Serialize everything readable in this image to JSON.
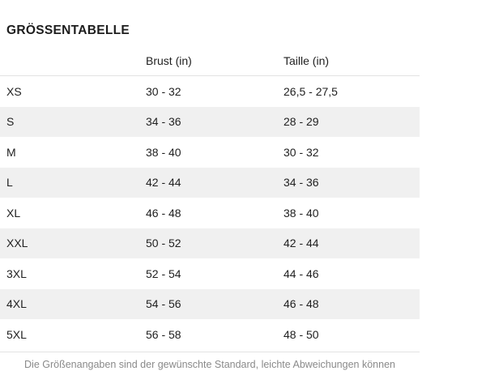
{
  "page": {
    "title": "GRÖSSENTABELLE",
    "note": "Die Größenangaben sind der gewünschte Standard, leichte Abweichungen können vorkommen."
  },
  "table": {
    "columns": {
      "size": "",
      "brust": "Brust (in)",
      "taille": "Taille (in)"
    },
    "rows": [
      {
        "size": "XS",
        "brust": "30 - 32",
        "taille": "26,5 - 27,5"
      },
      {
        "size": "S",
        "brust": "34 - 36",
        "taille": "28 - 29"
      },
      {
        "size": "M",
        "brust": "38 - 40",
        "taille": "30 - 32"
      },
      {
        "size": "L",
        "brust": "42 - 44",
        "taille": "34 - 36"
      },
      {
        "size": "XL",
        "brust": "46 - 48",
        "taille": "38 - 40"
      },
      {
        "size": "XXL",
        "brust": "50 - 52",
        "taille": "42 - 44"
      },
      {
        "size": "3XL",
        "brust": "52 - 54",
        "taille": "44 - 46"
      },
      {
        "size": "4XL",
        "brust": "54 - 56",
        "taille": "46 - 48"
      },
      {
        "size": "5XL",
        "brust": "56 - 58",
        "taille": "48 - 50"
      }
    ]
  },
  "colors": {
    "text": "#212121",
    "title": "#1d1d1d",
    "row_alt_bg": "#f0f0f0",
    "divider": "#e2e2e2",
    "note": "#8a8a8a"
  }
}
